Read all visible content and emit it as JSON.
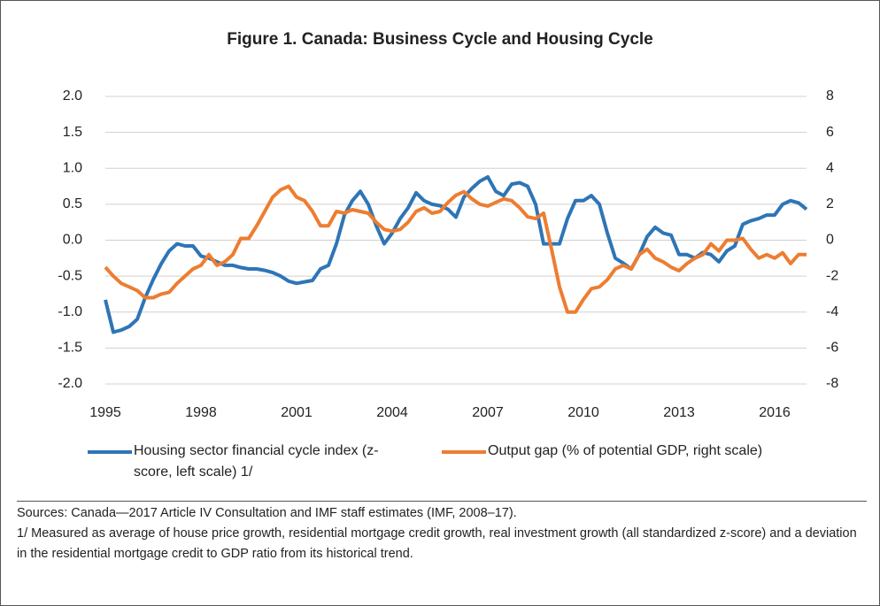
{
  "chart_data": {
    "type": "line",
    "title": "Figure 1. Canada: Business Cycle and Housing Cycle",
    "x": [
      1995,
      1995.25,
      1995.5,
      1995.75,
      1996,
      1996.25,
      1996.5,
      1996.75,
      1997,
      1997.25,
      1997.5,
      1997.75,
      1998,
      1998.25,
      1998.5,
      1998.75,
      1999,
      1999.25,
      1999.5,
      1999.75,
      2000,
      2000.25,
      2000.5,
      2000.75,
      2001,
      2001.25,
      2001.5,
      2001.75,
      2002,
      2002.25,
      2002.5,
      2002.75,
      2003,
      2003.25,
      2003.5,
      2003.75,
      2004,
      2004.25,
      2004.5,
      2004.75,
      2005,
      2005.25,
      2005.5,
      2005.75,
      2006,
      2006.25,
      2006.5,
      2006.75,
      2007,
      2007.25,
      2007.5,
      2007.75,
      2008,
      2008.25,
      2008.5,
      2008.75,
      2009,
      2009.25,
      2009.5,
      2009.75,
      2010,
      2010.25,
      2010.5,
      2010.75,
      2011,
      2011.25,
      2011.5,
      2011.75,
      2012,
      2012.25,
      2012.5,
      2012.75,
      2013,
      2013.25,
      2013.5,
      2013.75,
      2014,
      2014.25,
      2014.5,
      2014.75,
      2015,
      2015.25,
      2015.5,
      2015.75,
      2016,
      2016.25,
      2016.5,
      2016.75,
      2017
    ],
    "xlim": [
      1995,
      2017
    ],
    "xticks": [
      1995,
      1998,
      2001,
      2004,
      2007,
      2010,
      2013,
      2016
    ],
    "ylim": [
      -2,
      2
    ],
    "yticks": [
      {
        "value": -2,
        "label": "-2.0"
      },
      {
        "value": -1.5,
        "label": "-1.5"
      },
      {
        "value": -1,
        "label": "-1.0"
      },
      {
        "value": -0.5,
        "label": "-0.5"
      },
      {
        "value": 0,
        "label": "0.0"
      },
      {
        "value": 0.5,
        "label": "0.5"
      },
      {
        "value": 1,
        "label": "1.0"
      },
      {
        "value": 1.5,
        "label": "1.5"
      },
      {
        "value": 2,
        "label": "2.0"
      }
    ],
    "y2lim": [
      -8,
      8
    ],
    "y2ticks": [
      -8,
      -6,
      -4,
      -2,
      0,
      2,
      4,
      6,
      8
    ],
    "grid": true,
    "series": [
      {
        "name": "Housing sector financial cycle index (z-score, left scale) 1/",
        "color": "#2e75b6",
        "values": [
          -0.83,
          -1.28,
          -1.25,
          -1.2,
          -1.1,
          -0.8,
          -0.55,
          -0.33,
          -0.15,
          -0.05,
          -0.08,
          -0.08,
          -0.22,
          -0.25,
          -0.3,
          -0.35,
          -0.35,
          -0.38,
          -0.4,
          -0.4,
          -0.42,
          -0.45,
          -0.5,
          -0.57,
          -0.6,
          -0.58,
          -0.56,
          -0.4,
          -0.35,
          -0.05,
          0.35,
          0.55,
          0.68,
          0.5,
          0.2,
          -0.05,
          0.1,
          0.3,
          0.45,
          0.66,
          0.55,
          0.5,
          0.48,
          0.43,
          0.32,
          0.6,
          0.72,
          0.82,
          0.88,
          0.68,
          0.62,
          0.78,
          0.8,
          0.75,
          0.5,
          -0.05,
          -0.05,
          -0.05,
          0.3,
          0.55,
          0.55,
          0.62,
          0.5,
          0.1,
          -0.25,
          -0.32,
          -0.4,
          -0.2,
          0.05,
          0.18,
          0.1,
          0.07,
          -0.2,
          -0.2,
          -0.25,
          -0.17,
          -0.2,
          -0.3,
          -0.15,
          -0.08,
          0.22,
          0.27,
          0.3,
          0.35,
          0.35,
          0.5,
          0.55,
          0.52,
          0.43
        ]
      },
      {
        "name": "Output gap (% of potential GDP, right scale)",
        "color": "#ed7d31",
        "axis": "y2",
        "values": [
          -1.5,
          -2.0,
          -2.4,
          -2.6,
          -2.8,
          -3.2,
          -3.2,
          -3.0,
          -2.9,
          -2.4,
          -2.0,
          -1.6,
          -1.4,
          -0.8,
          -1.4,
          -1.2,
          -0.8,
          0.1,
          0.1,
          0.8,
          1.6,
          2.4,
          2.8,
          3.0,
          2.4,
          2.2,
          1.6,
          0.8,
          0.8,
          1.6,
          1.5,
          1.7,
          1.6,
          1.5,
          1.0,
          0.6,
          0.5,
          0.6,
          1.0,
          1.6,
          1.8,
          1.5,
          1.6,
          2.1,
          2.5,
          2.7,
          2.3,
          2.0,
          1.9,
          2.1,
          2.3,
          2.2,
          1.8,
          1.3,
          1.2,
          1.5,
          -0.5,
          -2.6,
          -4.0,
          -4.0,
          -3.3,
          -2.7,
          -2.6,
          -2.2,
          -1.6,
          -1.4,
          -1.6,
          -0.8,
          -0.5,
          -1.0,
          -1.2,
          -1.5,
          -1.7,
          -1.3,
          -1.0,
          -0.8,
          -0.2,
          -0.6,
          0.0,
          0.0,
          0.1,
          -0.5,
          -1.0,
          -0.8,
          -1.0,
          -0.7,
          -1.3,
          -0.8,
          -0.8
        ]
      }
    ],
    "notes": [
      "Sources: Canada—2017 Article IV Consultation and IMF staff estimates (IMF, 2008–17).",
      "1/ Measured as average of house price growth, residential mortgage credit growth, real investment growth (all standardized z-score) and a deviation in the residential mortgage credit to GDP ratio from its historical trend."
    ]
  }
}
